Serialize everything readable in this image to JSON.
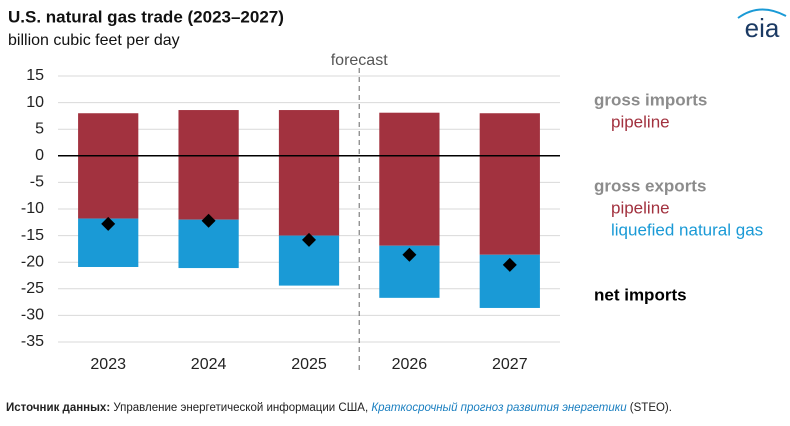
{
  "chart_data": {
    "type": "bar",
    "title": "U.S. natural gas trade (2023–2027)",
    "subtitle": "billion cubic feet per day",
    "logo": "eia",
    "categories": [
      "2023",
      "2024",
      "2025",
      "2026",
      "2027"
    ],
    "series": [
      {
        "name": "pipeline",
        "group": "gross imports",
        "type": "bar",
        "color": "#a2323f",
        "values": [
          8.0,
          8.6,
          8.6,
          8.1,
          8.0
        ]
      },
      {
        "name": "pipeline",
        "group": "gross exports",
        "type": "bar",
        "color": "#a2323f",
        "values": [
          -11.8,
          -12.0,
          -15.0,
          -16.9,
          -18.6
        ]
      },
      {
        "name": "liquefied natural gas",
        "group": "gross exports",
        "type": "bar",
        "color": "#1a9ad6",
        "values": [
          -9.1,
          -9.1,
          -9.4,
          -9.8,
          -10.0
        ]
      },
      {
        "name": "net imports",
        "type": "marker",
        "color": "#000000",
        "values": [
          -12.8,
          -12.2,
          -15.8,
          -18.6,
          -20.5
        ]
      }
    ],
    "ylim": [
      -35,
      15
    ],
    "yticks": [
      -35,
      -30,
      -25,
      -20,
      -15,
      -10,
      -5,
      0,
      5,
      10,
      15
    ],
    "grid": true,
    "forecast_label": "forecast",
    "forecast_start": "2026",
    "source": {
      "label": "Источник данных:",
      "text": "Управление энергетической информации США,",
      "link": "Краткосрочный прогноз развития энергетики",
      "suffix": "(STEO)."
    }
  }
}
